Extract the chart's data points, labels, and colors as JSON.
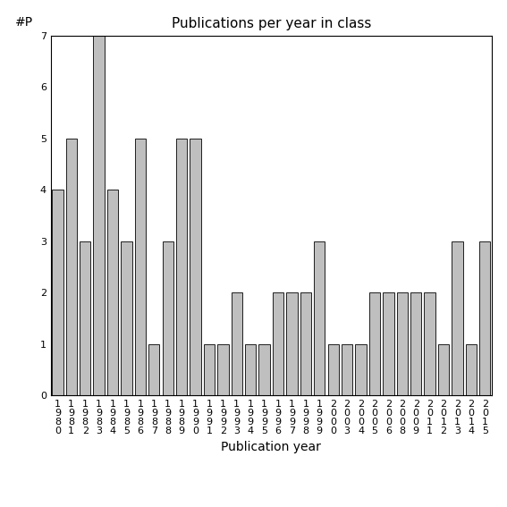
{
  "years": [
    "1980",
    "1981",
    "1982",
    "1983",
    "1984",
    "1985",
    "1986",
    "1987",
    "1988",
    "1989",
    "1990",
    "1991",
    "1992",
    "1993",
    "1994",
    "1995",
    "1996",
    "1997",
    "1998",
    "1999",
    "2000",
    "2003",
    "2004",
    "2005",
    "2006",
    "2008",
    "2009",
    "2011",
    "2012",
    "2013",
    "2014",
    "2015"
  ],
  "values": [
    4,
    5,
    3,
    7,
    4,
    3,
    5,
    1,
    3,
    5,
    5,
    1,
    1,
    2,
    1,
    1,
    2,
    2,
    2,
    3,
    1,
    1,
    1,
    2,
    2,
    2,
    2,
    2,
    1,
    3,
    1,
    3
  ],
  "bar_color": "#bfbfbf",
  "bar_edge_color": "#000000",
  "title": "Publications per year in class",
  "xlabel": "Publication year",
  "ylabel": "#P",
  "ylim": [
    0,
    7
  ],
  "yticks": [
    0,
    1,
    2,
    3,
    4,
    5,
    6,
    7
  ],
  "title_fontsize": 11,
  "label_fontsize": 10,
  "tick_fontsize": 8,
  "background_color": "#ffffff",
  "figure_size": [
    5.67,
    5.67
  ],
  "dpi": 100
}
